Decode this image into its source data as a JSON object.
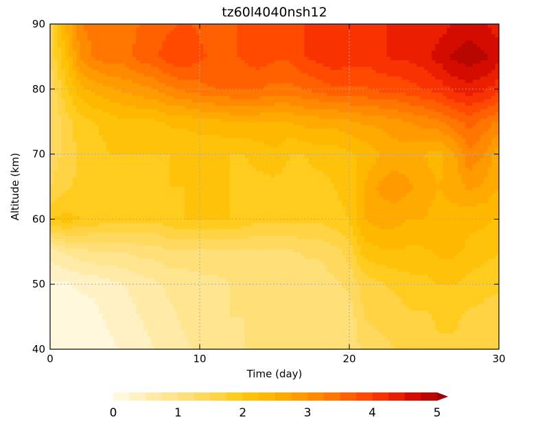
{
  "chart_data": {
    "type": "heatmap",
    "title": "tz60l4040nsh12",
    "xlabel": "Time (day)",
    "ylabel": "Altitude (km)",
    "xlim": [
      0,
      30
    ],
    "ylim": [
      40,
      90
    ],
    "x_ticks": [
      0,
      10,
      20,
      30
    ],
    "y_ticks": [
      40,
      50,
      60,
      70,
      80,
      90
    ],
    "x_tick_labels": [
      "0",
      "10",
      "20",
      "30"
    ],
    "y_tick_labels": [
      "40",
      "50",
      "60",
      "70",
      "80",
      "90"
    ],
    "grid": true,
    "grid_x": [
      10,
      20
    ],
    "grid_y": [
      50,
      60,
      70,
      80
    ],
    "x": [
      0,
      1,
      2,
      3,
      4,
      5,
      6,
      7,
      8,
      9,
      10,
      11,
      12,
      13,
      14,
      15,
      16,
      17,
      18,
      19,
      20,
      21,
      22,
      23,
      24,
      25,
      26,
      27,
      28,
      29,
      30
    ],
    "y": [
      40,
      45,
      50,
      55,
      60,
      65,
      70,
      75,
      80,
      85,
      90
    ],
    "z": [
      [
        0.1,
        0.1,
        0.1,
        0.1,
        0.2,
        0.3,
        0.4,
        0.5,
        0.6,
        0.7,
        0.8,
        0.9,
        0.9,
        1.0,
        1.0,
        1.0,
        1.0,
        1.0,
        1.1,
        1.1,
        1.1,
        1.3,
        1.4,
        1.5,
        1.6,
        1.6,
        1.7,
        1.7,
        1.6,
        1.6,
        1.5
      ],
      [
        0.1,
        0.1,
        0.1,
        0.2,
        0.3,
        0.4,
        0.5,
        0.6,
        0.7,
        0.8,
        0.9,
        0.9,
        1.0,
        1.0,
        1.0,
        1.0,
        1.0,
        1.1,
        1.1,
        1.1,
        1.1,
        1.5,
        1.6,
        1.6,
        1.7,
        1.7,
        1.8,
        1.8,
        1.7,
        1.7,
        1.6
      ],
      [
        0.2,
        0.2,
        0.3,
        0.3,
        0.4,
        0.5,
        0.6,
        0.7,
        0.8,
        0.8,
        0.9,
        0.9,
        1.0,
        1.0,
        1.0,
        1.0,
        1.0,
        1.0,
        1.1,
        1.2,
        1.3,
        1.6,
        1.7,
        1.8,
        1.9,
        1.9,
        2.0,
        2.0,
        1.9,
        1.8,
        1.8
      ],
      [
        0.6,
        0.8,
        0.9,
        1.0,
        1.0,
        1.0,
        1.1,
        1.1,
        1.2,
        1.2,
        1.2,
        1.2,
        1.2,
        1.2,
        1.2,
        1.2,
        1.2,
        1.3,
        1.3,
        1.4,
        1.6,
        2.1,
        2.2,
        2.2,
        2.2,
        2.2,
        2.3,
        2.3,
        2.2,
        2.1,
        2.0
      ],
      [
        2.0,
        2.1,
        2.0,
        1.9,
        1.8,
        1.8,
        1.8,
        1.8,
        1.9,
        2.0,
        2.0,
        2.0,
        2.0,
        1.9,
        1.8,
        1.8,
        1.8,
        1.8,
        1.8,
        1.9,
        2.0,
        2.5,
        2.6,
        2.6,
        2.5,
        2.5,
        2.4,
        2.4,
        2.3,
        2.3,
        2.2
      ],
      [
        1.5,
        1.7,
        1.8,
        1.8,
        1.8,
        1.8,
        1.9,
        1.9,
        2.0,
        2.0,
        2.0,
        2.0,
        2.0,
        1.9,
        1.9,
        1.9,
        1.9,
        1.9,
        1.9,
        2.0,
        2.1,
        2.5,
        2.8,
        2.9,
        2.8,
        2.6,
        2.5,
        2.6,
        2.8,
        2.7,
        2.5
      ],
      [
        1.3,
        1.6,
        1.8,
        1.9,
        2.0,
        2.0,
        2.0,
        2.0,
        2.0,
        2.0,
        2.0,
        2.0,
        2.0,
        2.0,
        2.1,
        2.2,
        2.0,
        2.0,
        2.1,
        2.1,
        2.2,
        2.3,
        2.5,
        2.6,
        2.6,
        2.5,
        2.4,
        2.7,
        3.2,
        3.0,
        2.6
      ],
      [
        1.2,
        1.6,
        1.9,
        2.0,
        2.1,
        2.2,
        2.2,
        2.2,
        2.3,
        2.3,
        2.4,
        2.4,
        2.5,
        2.5,
        2.5,
        2.5,
        2.5,
        2.6,
        2.6,
        2.6,
        2.7,
        2.8,
        2.8,
        2.9,
        3.0,
        3.1,
        3.2,
        3.4,
        3.6,
        3.4,
        3.2
      ],
      [
        1.3,
        1.9,
        2.4,
        2.6,
        2.7,
        2.8,
        2.9,
        3.0,
        3.2,
        3.3,
        3.4,
        3.5,
        3.5,
        3.5,
        3.5,
        3.4,
        3.4,
        3.5,
        3.6,
        3.7,
        3.7,
        3.7,
        3.8,
        3.8,
        3.9,
        4.0,
        4.1,
        4.3,
        4.4,
        4.3,
        4.1
      ],
      [
        1.5,
        2.2,
        3.0,
        3.3,
        3.4,
        3.4,
        3.6,
        3.7,
        3.9,
        4.0,
        3.8,
        3.7,
        3.7,
        3.8,
        3.9,
        3.8,
        3.8,
        4.0,
        4.1,
        4.2,
        4.1,
        4.1,
        4.2,
        4.3,
        4.3,
        4.4,
        4.6,
        4.8,
        4.9,
        4.8,
        4.6
      ],
      [
        1.6,
        2.5,
        3.2,
        3.4,
        3.5,
        3.4,
        3.5,
        3.6,
        3.7,
        3.8,
        3.7,
        3.6,
        3.7,
        3.8,
        3.9,
        3.9,
        3.9,
        4.0,
        4.1,
        4.2,
        4.1,
        4.1,
        4.2,
        4.3,
        4.3,
        4.3,
        4.4,
        4.5,
        4.6,
        4.5,
        4.4
      ]
    ],
    "colorbar": {
      "levels": [
        0,
        0.25,
        0.5,
        0.75,
        1,
        1.25,
        1.5,
        1.75,
        2,
        2.25,
        2.5,
        2.75,
        3,
        3.25,
        3.5,
        3.75,
        4,
        4.25,
        4.5,
        4.75,
        5
      ],
      "tick_values": [
        0,
        1,
        2,
        3,
        4,
        5
      ],
      "tick_labels": [
        "0",
        "1",
        "2",
        "3",
        "4",
        "5"
      ],
      "colors": [
        "#fff8dc",
        "#fff1c4",
        "#ffeaa8",
        "#ffe58f",
        "#ffdf77",
        "#ffd95e",
        "#ffd343",
        "#ffcc1f",
        "#ffc20a",
        "#ffb800",
        "#ffaa00",
        "#ff9a00",
        "#ff8a00",
        "#ff7600",
        "#ff6100",
        "#ff4a00",
        "#f83200",
        "#ec1e00",
        "#d40c00",
        "#b80600",
        "#9a0000"
      ],
      "extend": "max",
      "placement": "bottom"
    }
  }
}
